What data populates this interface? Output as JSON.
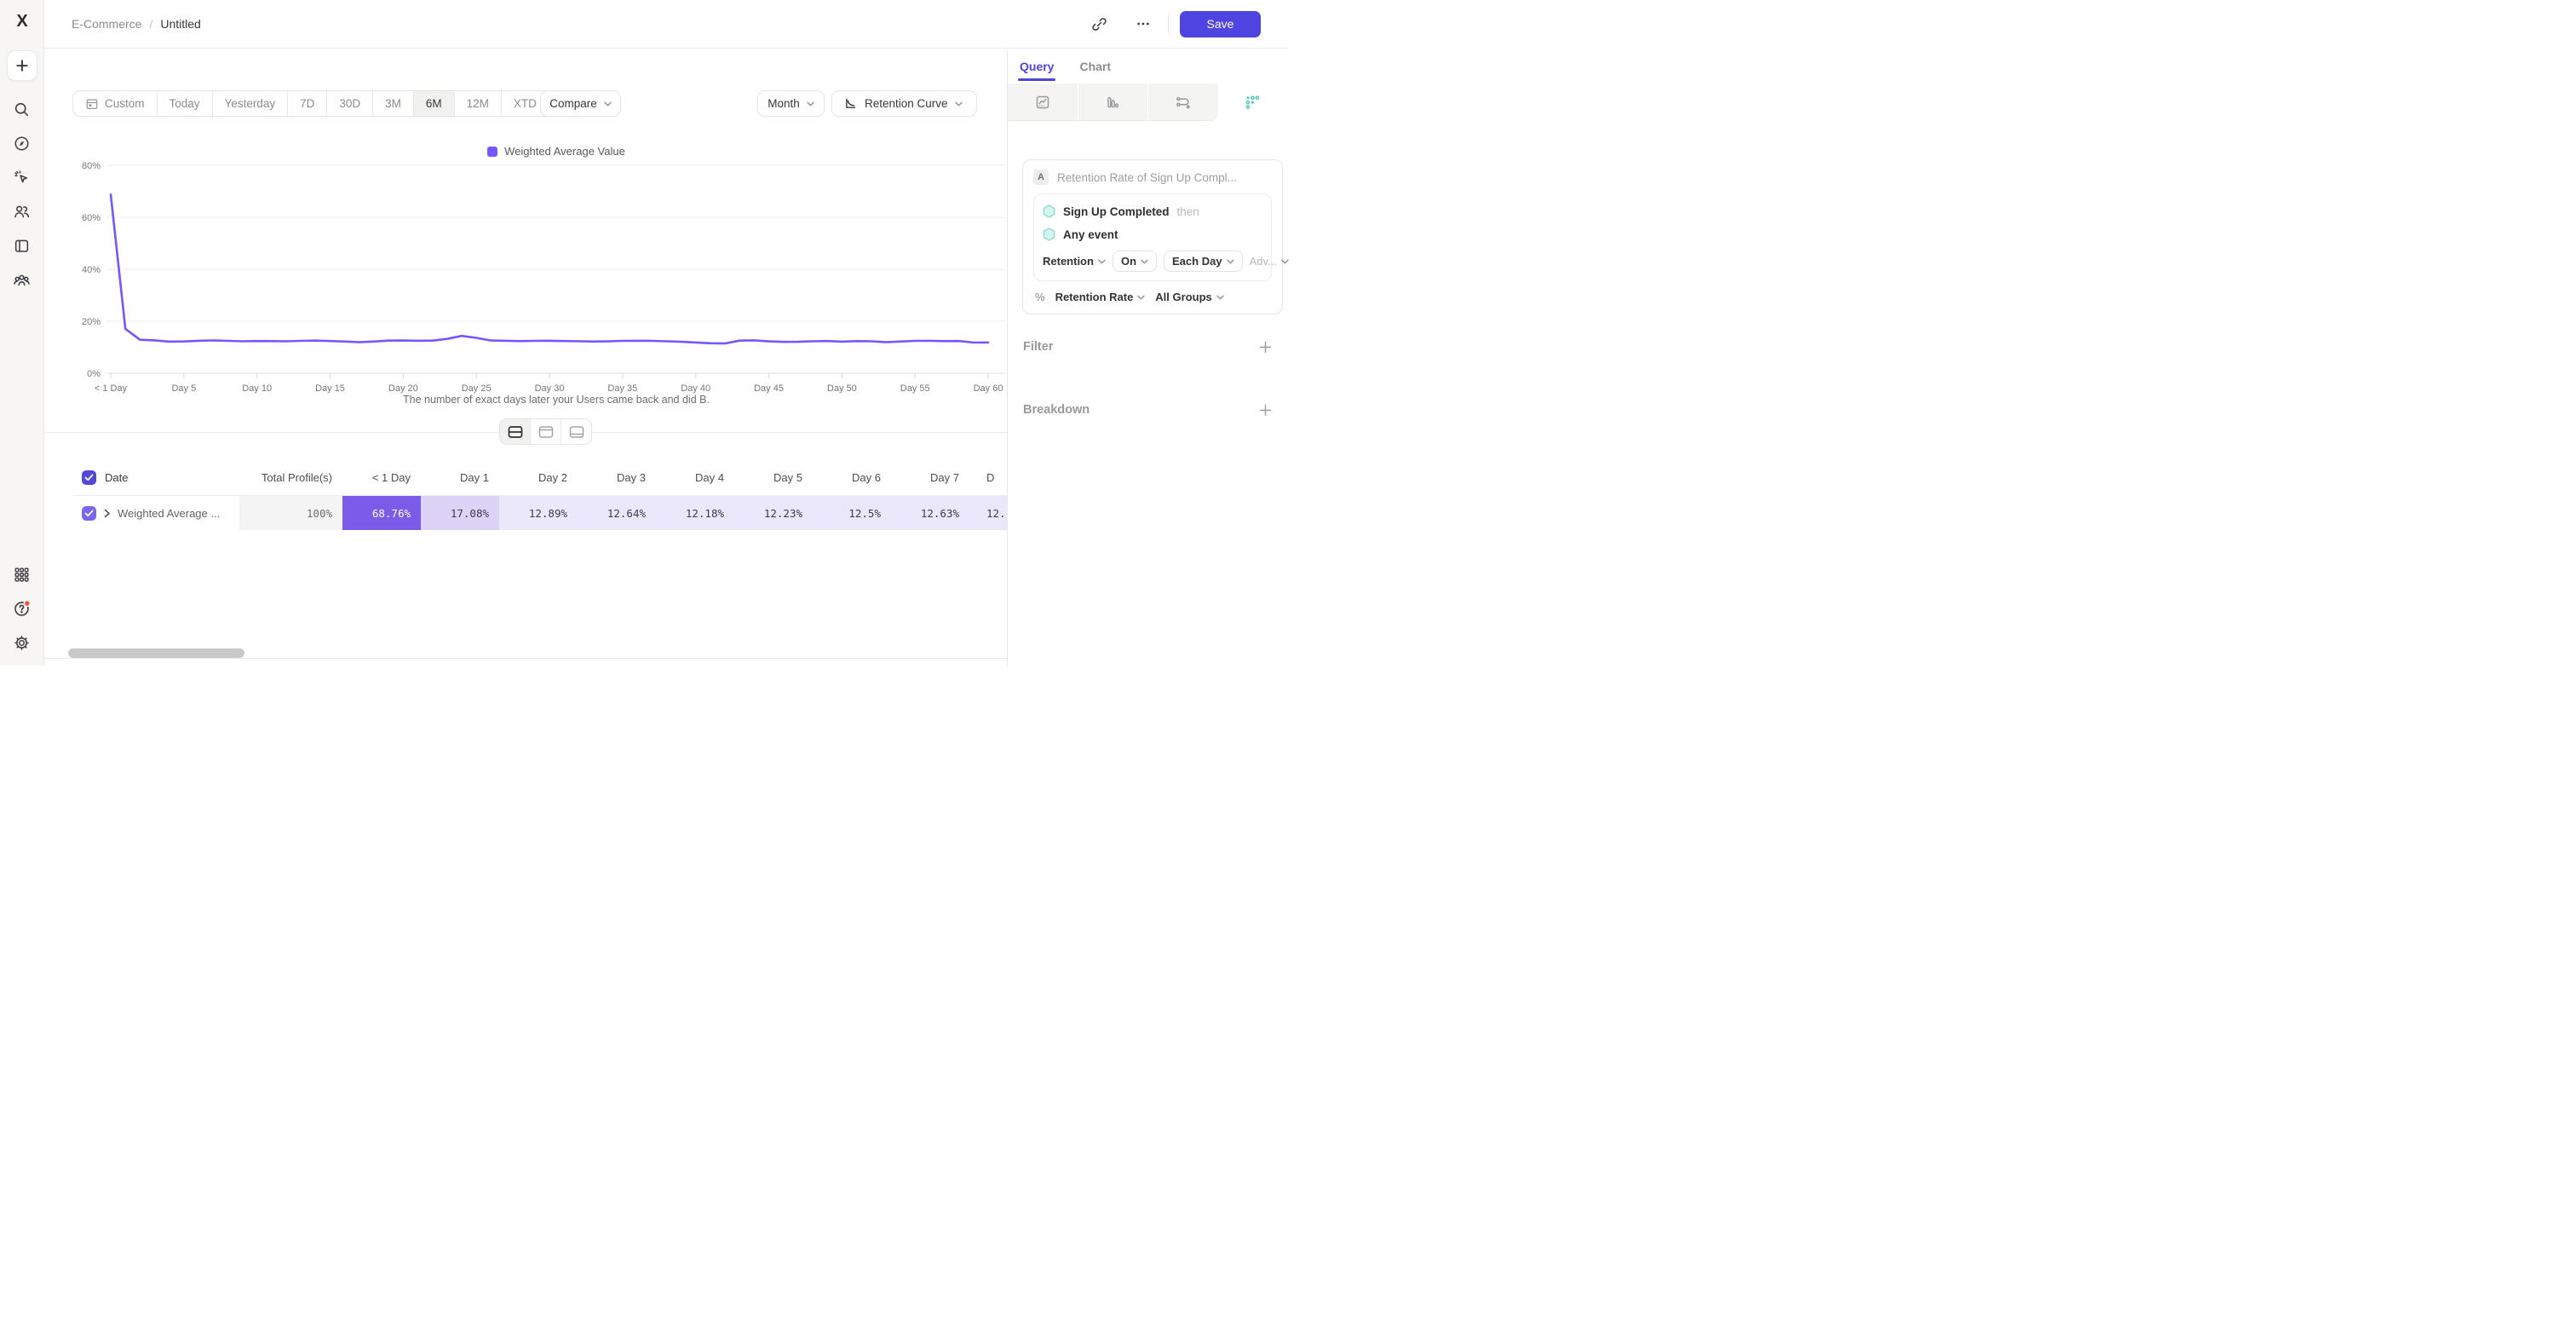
{
  "app": {
    "accent": "#4F44E0",
    "line_color": "#7856FF",
    "teal": "#58CBBE"
  },
  "topbar": {
    "breadcrumb": {
      "project": "E-Commerce",
      "separator": "/",
      "report": "Untitled"
    },
    "save_label": "Save",
    "icons": [
      "link-icon",
      "more-ellipsis-icon"
    ]
  },
  "sidebar": {
    "icons": [
      "mixpanel-logo",
      "create-plus-icon",
      "search-icon",
      "compass-icon",
      "cursor-click-icon",
      "users-icon",
      "boards-icon",
      "cohorts-icon",
      "apps-grid-icon",
      "help-icon",
      "settings-gear-icon"
    ],
    "help_has_notification": true
  },
  "toolbar": {
    "date_ranges": [
      {
        "label": "Custom",
        "icon": "calendar-icon"
      },
      {
        "label": "Today"
      },
      {
        "label": "Yesterday"
      },
      {
        "label": "7D"
      },
      {
        "label": "30D"
      },
      {
        "label": "3M"
      },
      {
        "label": "6M",
        "selected": true
      },
      {
        "label": "12M"
      },
      {
        "label": "XTD",
        "chevron": true
      }
    ],
    "compare_label": "Compare",
    "granularity_label": "Month",
    "chart_type_label": "Retention Curve"
  },
  "chart_data": {
    "type": "line",
    "title": "",
    "series": [
      {
        "name": "Weighted Average Value",
        "color": "#7856FF",
        "values": [
          68.76,
          17.08,
          12.89,
          12.64,
          12.18,
          12.23,
          12.5,
          12.63,
          12.45,
          12.3,
          12.4,
          12.35,
          12.3,
          12.45,
          12.55,
          12.4,
          12.2,
          11.95,
          12.2,
          12.55,
          12.6,
          12.5,
          12.55,
          13.2,
          14.35,
          13.6,
          12.6,
          12.5,
          12.35,
          12.45,
          12.5,
          12.4,
          12.3,
          12.2,
          12.25,
          12.45,
          12.5,
          12.45,
          12.3,
          12.1,
          11.85,
          11.55,
          11.45,
          12.55,
          12.65,
          12.25,
          12.05,
          12.1,
          12.3,
          12.4,
          12.15,
          12.35,
          12.3,
          11.95,
          12.2,
          12.45,
          12.5,
          12.35,
          12.4,
          11.8,
          11.85
        ]
      }
    ],
    "x_unit": "day",
    "x_ticks": [
      {
        "day": 0,
        "label": "< 1 Day"
      },
      {
        "day": 5,
        "label": "Day 5"
      },
      {
        "day": 10,
        "label": "Day 10"
      },
      {
        "day": 15,
        "label": "Day 15"
      },
      {
        "day": 20,
        "label": "Day 20"
      },
      {
        "day": 25,
        "label": "Day 25"
      },
      {
        "day": 30,
        "label": "Day 30"
      },
      {
        "day": 35,
        "label": "Day 35"
      },
      {
        "day": 40,
        "label": "Day 40"
      },
      {
        "day": 45,
        "label": "Day 45"
      },
      {
        "day": 50,
        "label": "Day 50"
      },
      {
        "day": 55,
        "label": "Day 55"
      },
      {
        "day": 60,
        "label": "Day 60"
      }
    ],
    "ylim": [
      0,
      80
    ],
    "yticks": [
      "0%",
      "20%",
      "40%",
      "60%",
      "80%"
    ],
    "grid": true,
    "legend_position": "top-center",
    "caption": "The number of exact days later your Users came back and did B."
  },
  "view_toggle": {
    "modes": [
      "split-view",
      "panel-top-view",
      "panel-bottom-view"
    ],
    "selected": "split-view"
  },
  "table": {
    "select_all_checked": true,
    "columns": [
      "Date",
      "Total Profile(s)",
      "< 1 Day",
      "Day 1",
      "Day 2",
      "Day 3",
      "Day 4",
      "Day 5",
      "Day 6",
      "Day 7",
      "D"
    ],
    "row": {
      "checked": true,
      "label": "Weighted Average ...",
      "values": [
        "100%",
        "68.76%",
        "17.08%",
        "12.89%",
        "12.64%",
        "12.18%",
        "12.23%",
        "12.5%",
        "12.63%",
        "12."
      ]
    }
  },
  "query_panel": {
    "tabs": [
      {
        "label": "Query",
        "active": true
      },
      {
        "label": "Chart",
        "active": false
      }
    ],
    "report_types": [
      "insights-icon",
      "funnels-icon",
      "flows-icon",
      "retention-icon"
    ],
    "selected_report": "retention-icon",
    "query": {
      "badge": "A",
      "name": "Retention Rate of Sign Up Compl...",
      "steps": [
        {
          "event": "Sign Up Completed",
          "suffix": "then"
        },
        {
          "event": "Any event",
          "suffix": ""
        }
      ],
      "controls": {
        "retention_label": "Retention",
        "on_label": "On",
        "interval_label": "Each Day",
        "advanced_label": "Adv..."
      },
      "measure": {
        "prefix": "%",
        "metric_label": "Retention Rate",
        "groups_label": "All Groups"
      }
    },
    "sections": [
      {
        "label": "Filter"
      },
      {
        "label": "Breakdown"
      }
    ]
  }
}
